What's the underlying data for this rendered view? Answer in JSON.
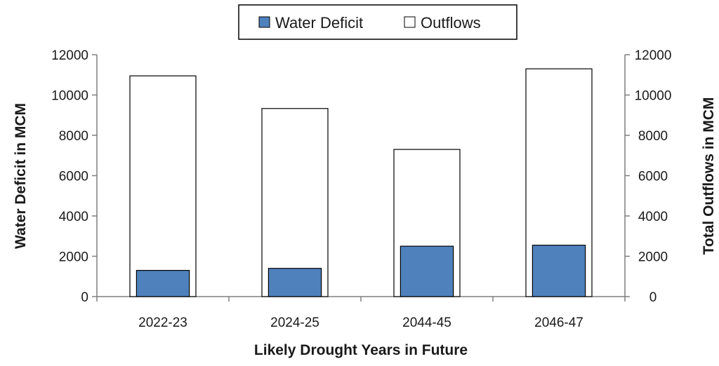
{
  "chart_data": {
    "type": "bar",
    "categories": [
      "2022-23",
      "2024-25",
      "2044-45",
      "2046-47"
    ],
    "series": [
      {
        "name": "Water Deficit",
        "axis": "left",
        "color": "#4f81bd",
        "values": [
          1300,
          1400,
          2500,
          2550
        ]
      },
      {
        "name": "Outflows",
        "axis": "right",
        "color": "#ffffff",
        "values": [
          10950,
          9330,
          7300,
          11300
        ]
      }
    ],
    "title": "",
    "xlabel": "Likely Drought Years in Future",
    "ylabel": "Water Deficit in MCM",
    "y2label": "Total Outflows in MCM",
    "ylim": [
      0,
      12000
    ],
    "y2lim": [
      0,
      12000
    ],
    "yticks": [
      "0",
      "2000",
      "4000",
      "6000",
      "8000",
      "10000",
      "12000"
    ],
    "y2ticks": [
      "0",
      "2000",
      "4000",
      "6000",
      "8000",
      "10000",
      "12000"
    ],
    "legend": {
      "position": "top",
      "entries": [
        "Water Deficit",
        "Outflows"
      ]
    },
    "grid": false
  }
}
